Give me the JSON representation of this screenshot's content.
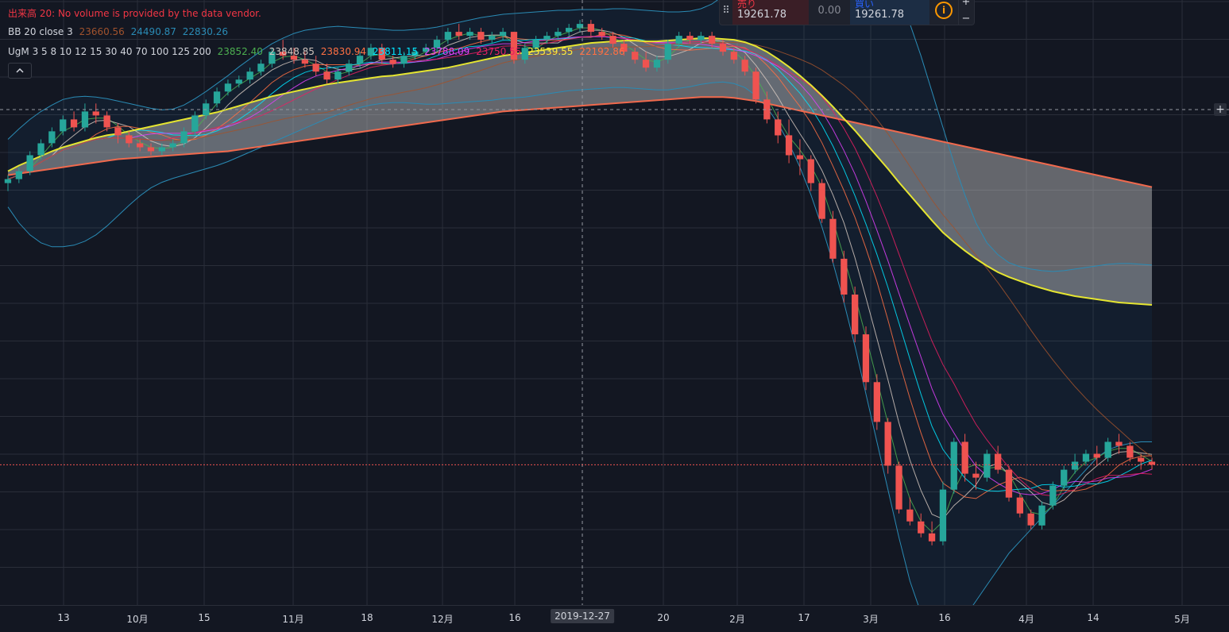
{
  "legend": {
    "volume": "出来高 20: No volume is provided by the data vendor.",
    "bb": {
      "name": "BB 20 close 3",
      "v1": "23660.56",
      "v2": "24490.87",
      "v3": "22830.26"
    },
    "ma": {
      "name": "UgM 3 5 8 10 12 15 30 40 70 100 125 200",
      "values": [
        "23852.40",
        "23848.85",
        "23830.94",
        "23811.15",
        "23788.09",
        "23750.55",
        "23539.55",
        "22192.86"
      ]
    },
    "collapse_icon": "chevron-up-icon"
  },
  "trade_widget": {
    "sell_label": "売り",
    "sell_price": "19261.78",
    "spread": "0.00",
    "buy_label": "買い",
    "buy_price": "19261.78",
    "info_icon": "info-icon",
    "plus": "+",
    "minus": "−"
  },
  "add_icon": "+",
  "time_axis": {
    "crosshair_date": "2019-12-27"
  },
  "colors": {
    "up": "#26a69a",
    "down": "#ef5350",
    "ma70": "#e5e531",
    "ma200": "#f0694d",
    "bb": "#2a8bb5"
  },
  "chart_data": {
    "type": "candlestick",
    "x_ticks": [
      "13",
      "10月",
      "15",
      "11月",
      "18",
      "12月",
      "16",
      "20",
      "2月",
      "17",
      "3月",
      "16",
      "4月",
      "14",
      "5月"
    ],
    "y_range": [
      17500,
      25100
    ],
    "grid": true,
    "price_line": 19261.78,
    "ohlc": [
      [
        22800,
        22900,
        22700,
        22850
      ],
      [
        22850,
        23000,
        22800,
        22950
      ],
      [
        22950,
        23200,
        22900,
        23150
      ],
      [
        23150,
        23350,
        23100,
        23300
      ],
      [
        23300,
        23500,
        23250,
        23450
      ],
      [
        23450,
        23650,
        23400,
        23600
      ],
      [
        23600,
        23700,
        23450,
        23500
      ],
      [
        23500,
        23800,
        23450,
        23700
      ],
      [
        23700,
        23800,
        23550,
        23650
      ],
      [
        23650,
        23700,
        23450,
        23500
      ],
      [
        23500,
        23550,
        23300,
        23400
      ],
      [
        23400,
        23450,
        23250,
        23300
      ],
      [
        23300,
        23350,
        23200,
        23250
      ],
      [
        23250,
        23300,
        23150,
        23200
      ],
      [
        23200,
        23300,
        23150,
        23250
      ],
      [
        23250,
        23350,
        23200,
        23300
      ],
      [
        23300,
        23500,
        23250,
        23450
      ],
      [
        23450,
        23700,
        23400,
        23650
      ],
      [
        23650,
        23850,
        23600,
        23800
      ],
      [
        23800,
        24000,
        23750,
        23950
      ],
      [
        23950,
        24100,
        23900,
        24050
      ],
      [
        24050,
        24150,
        24000,
        24100
      ],
      [
        24100,
        24250,
        24050,
        24200
      ],
      [
        24200,
        24350,
        24150,
        24300
      ],
      [
        24300,
        24500,
        24250,
        24450
      ],
      [
        24450,
        24600,
        24350,
        24400
      ],
      [
        24400,
        24500,
        24300,
        24350
      ],
      [
        24350,
        24450,
        24250,
        24300
      ],
      [
        24300,
        24400,
        24150,
        24200
      ],
      [
        24200,
        24300,
        24050,
        24100
      ],
      [
        24100,
        24250,
        24050,
        24200
      ],
      [
        24200,
        24350,
        24150,
        24300
      ],
      [
        24300,
        24450,
        24250,
        24400
      ],
      [
        24400,
        24550,
        24350,
        24500
      ],
      [
        24500,
        24550,
        24300,
        24350
      ],
      [
        24350,
        24400,
        24250,
        24300
      ],
      [
        24300,
        24450,
        24250,
        24400
      ],
      [
        24400,
        24500,
        24350,
        24450
      ],
      [
        24450,
        24550,
        24400,
        24500
      ],
      [
        24500,
        24650,
        24450,
        24600
      ],
      [
        24600,
        24750,
        24550,
        24700
      ],
      [
        24700,
        24800,
        24600,
        24650
      ],
      [
        24650,
        24750,
        24600,
        24700
      ],
      [
        24700,
        24750,
        24550,
        24600
      ],
      [
        24600,
        24700,
        24550,
        24650
      ],
      [
        24650,
        24750,
        24600,
        24700
      ],
      [
        24700,
        24700,
        24300,
        24350
      ],
      [
        24350,
        24550,
        24300,
        24500
      ],
      [
        24500,
        24650,
        24450,
        24600
      ],
      [
        24600,
        24700,
        24550,
        24650
      ],
      [
        24650,
        24750,
        24600,
        24700
      ],
      [
        24700,
        24800,
        24650,
        24750
      ],
      [
        24750,
        24850,
        24700,
        24800
      ],
      [
        24800,
        24850,
        24650,
        24700
      ],
      [
        24700,
        24750,
        24600,
        24650
      ],
      [
        24650,
        24700,
        24500,
        24550
      ],
      [
        24550,
        24600,
        24400,
        24450
      ],
      [
        24450,
        24500,
        24300,
        24350
      ],
      [
        24350,
        24450,
        24200,
        24250
      ],
      [
        24250,
        24400,
        24200,
        24350
      ],
      [
        24350,
        24600,
        24300,
        24550
      ],
      [
        24550,
        24700,
        24500,
        24650
      ],
      [
        24650,
        24700,
        24550,
        24600
      ],
      [
        24600,
        24700,
        24550,
        24650
      ],
      [
        24650,
        24700,
        24500,
        24550
      ],
      [
        24550,
        24600,
        24400,
        24450
      ],
      [
        24450,
        24500,
        24300,
        24350
      ],
      [
        24350,
        24400,
        24150,
        24200
      ],
      [
        24200,
        24250,
        23800,
        23850
      ],
      [
        23850,
        23950,
        23550,
        23600
      ],
      [
        23600,
        23700,
        23300,
        23400
      ],
      [
        23400,
        23600,
        23050,
        23150
      ],
      [
        23150,
        23350,
        22900,
        23100
      ],
      [
        23100,
        23150,
        22700,
        22800
      ],
      [
        22800,
        22850,
        22300,
        22350
      ],
      [
        22350,
        22450,
        21800,
        21850
      ],
      [
        21850,
        21950,
        21300,
        21400
      ],
      [
        21400,
        21500,
        20800,
        20900
      ],
      [
        20900,
        21000,
        20200,
        20300
      ],
      [
        20300,
        20400,
        19700,
        19800
      ],
      [
        19800,
        19850,
        19150,
        19250
      ],
      [
        19250,
        19300,
        18650,
        18700
      ],
      [
        18700,
        18850,
        18500,
        18550
      ],
      [
        18550,
        18650,
        18350,
        18400
      ],
      [
        18400,
        18550,
        18250,
        18300
      ],
      [
        18300,
        19050,
        18250,
        18950
      ],
      [
        18950,
        19600,
        18900,
        19550
      ],
      [
        19550,
        19650,
        19050,
        19150
      ],
      [
        19150,
        19300,
        18950,
        19100
      ],
      [
        19100,
        19450,
        19050,
        19400
      ],
      [
        19400,
        19500,
        19150,
        19200
      ],
      [
        19200,
        19250,
        18800,
        18850
      ],
      [
        18850,
        18900,
        18600,
        18650
      ],
      [
        18650,
        18700,
        18450,
        18500
      ],
      [
        18500,
        18800,
        18450,
        18750
      ],
      [
        18750,
        19050,
        18700,
        19000
      ],
      [
        19000,
        19250,
        18950,
        19200
      ],
      [
        19200,
        19400,
        19150,
        19300
      ],
      [
        19300,
        19450,
        19250,
        19400
      ],
      [
        19400,
        19500,
        19250,
        19350
      ],
      [
        19350,
        19600,
        19300,
        19550
      ],
      [
        19550,
        19650,
        19400,
        19500
      ],
      [
        19500,
        19550,
        19300,
        19350
      ],
      [
        19350,
        19400,
        19200,
        19300
      ],
      [
        19300,
        19350,
        19200,
        19261.78
      ]
    ],
    "ma70": [
      22950,
      23020,
      23080,
      23140,
      23200,
      23250,
      23290,
      23330,
      23370,
      23400,
      23420,
      23450,
      23480,
      23510,
      23540,
      23570,
      23600,
      23630,
      23660,
      23690,
      23730,
      23770,
      23810,
      23850,
      23890,
      23920,
      23950,
      23980,
      24010,
      24040,
      24060,
      24080,
      24100,
      24120,
      24140,
      24150,
      24170,
      24190,
      24210,
      24230,
      24250,
      24280,
      24310,
      24340,
      24370,
      24400,
      24420,
      24440,
      24460,
      24480,
      24500,
      24520,
      24540,
      24560,
      24570,
      24580,
      24590,
      24590,
      24580,
      24580,
      24590,
      24600,
      24610,
      24620,
      24620,
      24610,
      24600,
      24570,
      24520,
      24450,
      24360,
      24260,
      24150,
      24030,
      23900,
      23760,
      23610,
      23460,
      23300,
      23140,
      22980,
      22810,
      22650,
      22490,
      22330,
      22180,
      22060,
      21950,
      21850,
      21760,
      21680,
      21620,
      21570,
      21520,
      21480,
      21440,
      21410,
      21380,
      21360,
      21340,
      21320,
      21300,
      21290,
      21280,
      21270
    ],
    "ma200": [
      22900,
      22920,
      22940,
      22960,
      22980,
      23000,
      23020,
      23040,
      23060,
      23080,
      23100,
      23110,
      23120,
      23130,
      23140,
      23150,
      23160,
      23170,
      23180,
      23190,
      23200,
      23220,
      23240,
      23260,
      23280,
      23300,
      23320,
      23340,
      23360,
      23380,
      23400,
      23420,
      23440,
      23460,
      23480,
      23500,
      23520,
      23540,
      23560,
      23580,
      23600,
      23620,
      23640,
      23660,
      23680,
      23700,
      23710,
      23720,
      23730,
      23740,
      23750,
      23760,
      23770,
      23780,
      23790,
      23800,
      23810,
      23820,
      23830,
      23840,
      23850,
      23860,
      23870,
      23880,
      23880,
      23880,
      23870,
      23850,
      23830,
      23800,
      23770,
      23740,
      23710,
      23680,
      23650,
      23620,
      23590,
      23560,
      23530,
      23500,
      23470,
      23440,
      23410,
      23380,
      23350,
      23320,
      23290,
      23260,
      23230,
      23200,
      23170,
      23140,
      23110,
      23080,
      23050,
      23020,
      22990,
      22960,
      22930,
      22900,
      22870,
      22840,
      22810,
      22780,
      22750
    ],
    "bb_upper": [
      23350,
      23480,
      23600,
      23700,
      23780,
      23850,
      23880,
      23890,
      23880,
      23860,
      23830,
      23800,
      23770,
      23740,
      23720,
      23730,
      23780,
      23860,
      23950,
      24050,
      24150,
      24260,
      24360,
      24460,
      24550,
      24620,
      24680,
      24720,
      24740,
      24760,
      24770,
      24760,
      24750,
      24740,
      24730,
      24720,
      24720,
      24730,
      24740,
      24760,
      24790,
      24820,
      24850,
      24880,
      24900,
      24920,
      24930,
      24940,
      24950,
      24960,
      24970,
      24970,
      24980,
      24980,
      24980,
      24990,
      24990,
      24980,
      24970,
      24960,
      24950,
      24950,
      24960,
      24990,
      25050,
      25150,
      25300,
      25480,
      25650,
      25800,
      25930,
      26050,
      26150,
      26200,
      26220,
      26200,
      26150,
      26050,
      25900,
      25700,
      25450,
      25150,
      24800,
      24400,
      23950,
      23500,
      23050,
      22650,
      22300,
      22050,
      21900,
      21800,
      21750,
      21720,
      21700,
      21690,
      21700,
      21720,
      21740,
      21760,
      21780,
      21790,
      21790,
      21780,
      21770
    ],
    "bb_lower": [
      22500,
      22300,
      22150,
      22050,
      22000,
      22000,
      22020,
      22070,
      22150,
      22260,
      22390,
      22520,
      22640,
      22740,
      22810,
      22860,
      22900,
      22940,
      22980,
      23020,
      23070,
      23130,
      23190,
      23250,
      23310,
      23370,
      23430,
      23490,
      23550,
      23610,
      23660,
      23710,
      23750,
      23780,
      23800,
      23810,
      23810,
      23800,
      23790,
      23790,
      23800,
      23810,
      23820,
      23830,
      23840,
      23860,
      23870,
      23880,
      23900,
      23920,
      23940,
      23960,
      23970,
      23980,
      23990,
      24000,
      24000,
      23990,
      23980,
      23970,
      23970,
      23990,
      24010,
      24040,
      24060,
      24070,
      24050,
      24000,
      23900,
      23750,
      23550,
      23300,
      23000,
      22650,
      22250,
      21800,
      21300,
      20750,
      20150,
      19550,
      18950,
      18350,
      17800,
      17400,
      17200,
      17150,
      17200,
      17350,
      17550,
      17750,
      17950,
      18150,
      18300,
      18450,
      18600,
      18750,
      18900,
      19050,
      19200,
      19350,
      19450,
      19500,
      19530,
      19550,
      19550
    ]
  }
}
